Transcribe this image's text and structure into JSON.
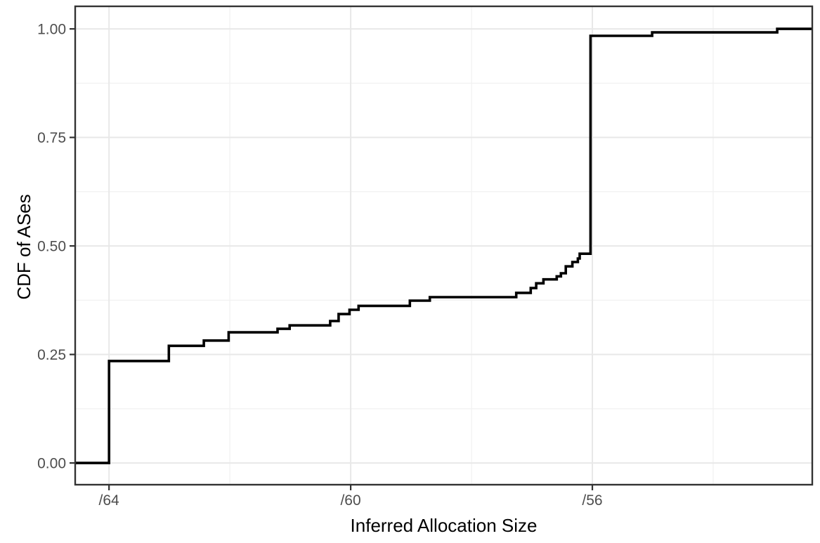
{
  "chart_data": {
    "type": "line",
    "subtype": "step-cdf",
    "title": "",
    "xlabel": "Inferred Allocation Size",
    "ylabel": "CDF of ASes",
    "grid": "on",
    "legend": "none",
    "x_axis": {
      "reversed": true,
      "range": [
        64.56,
        52.36
      ],
      "ticks": [
        {
          "label": "/64",
          "value": 64
        },
        {
          "label": "/60",
          "value": 60
        },
        {
          "label": "/56",
          "value": 56
        }
      ],
      "minor_ticks": [
        62,
        58,
        54
      ]
    },
    "y_axis": {
      "range": [
        -0.05,
        1.052
      ],
      "ticks": [
        {
          "label": "0.00",
          "value": 0.0
        },
        {
          "label": "0.25",
          "value": 0.25
        },
        {
          "label": "0.50",
          "value": 0.5
        },
        {
          "label": "0.75",
          "value": 0.75
        },
        {
          "label": "1.00",
          "value": 1.0
        }
      ],
      "minor_ticks": [
        0.125,
        0.375,
        0.625,
        0.875
      ]
    },
    "series": [
      {
        "name": "CDF of ASes",
        "color": "#000000",
        "start": [
          64.56,
          0.0
        ],
        "steps": [
          [
            64.0,
            0.235
          ],
          [
            63.01,
            0.27
          ],
          [
            62.43,
            0.282
          ],
          [
            62.02,
            0.301
          ],
          [
            61.21,
            0.309
          ],
          [
            61.01,
            0.317
          ],
          [
            60.34,
            0.327
          ],
          [
            60.2,
            0.343
          ],
          [
            60.02,
            0.353
          ],
          [
            59.87,
            0.362
          ],
          [
            59.02,
            0.374
          ],
          [
            58.69,
            0.382
          ],
          [
            57.26,
            0.392
          ],
          [
            57.02,
            0.403
          ],
          [
            56.93,
            0.414
          ],
          [
            56.81,
            0.423
          ],
          [
            56.59,
            0.43
          ],
          [
            56.52,
            0.437
          ],
          [
            56.44,
            0.453
          ],
          [
            56.33,
            0.463
          ],
          [
            56.24,
            0.471
          ],
          [
            56.21,
            0.482
          ],
          [
            56.03,
            0.984
          ],
          [
            55.01,
            0.992
          ],
          [
            52.94,
            1.0
          ]
        ],
        "end_x": 52.36
      }
    ],
    "colors": {
      "background": "#ffffff",
      "panel_background": "#ffffff",
      "grid_major": "#e8e8e8",
      "grid_minor": "#f1f1f1",
      "panel_border": "#333333",
      "tick_mark": "#333333",
      "tick_text": "#4d4d4d",
      "axis_title_text": "#000000",
      "line": "#000000"
    }
  }
}
